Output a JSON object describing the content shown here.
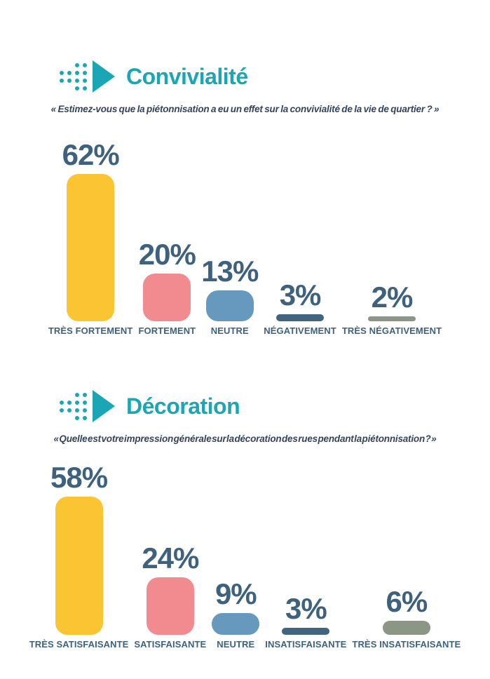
{
  "theme": {
    "accent": "#1AA6B4",
    "value_text_color": "#3E617E",
    "question_text_color": "#33455C",
    "background": "#FFFFFF"
  },
  "sections": [
    {
      "title": "Convivialité",
      "icon": "dots-play-icon",
      "question": "« Estimez-vous que la piétonnisation a eu un effet sur la convivialité de la vie de quartier ? »"
    },
    {
      "title": "Décoration",
      "icon": "dots-play-icon",
      "question": "« Quelle est votre impression générale sur la décoration des rues pendant la piétonnisation ? »"
    }
  ],
  "chart_data": [
    {
      "type": "bar",
      "title": "Convivialité",
      "categories": [
        "TRÈS FORTEMENT",
        "FORTEMENT",
        "NEUTRE",
        "NÉGATIVEMENT",
        "TRÈS NÉGATIVEMENT"
      ],
      "values": [
        62,
        20,
        13,
        3,
        2
      ],
      "value_labels": [
        "62%",
        "20%",
        "13%",
        "3%",
        "2%"
      ],
      "bar_colors": [
        "#FBC433",
        "#F28B90",
        "#6699BD",
        "#41647F",
        "#8B9685"
      ],
      "unit": "%",
      "ylim": [
        0,
        65
      ],
      "grid": false,
      "axes_visible": false,
      "legend": false
    },
    {
      "type": "bar",
      "title": "Décoration",
      "categories": [
        "TRÈS SATISFAISANTE",
        "SATISFAISANTE",
        "NEUTRE",
        "INSATISFAISANTE",
        "TRÈS INSATISFAISANTE"
      ],
      "values": [
        58,
        24,
        9,
        3,
        6
      ],
      "value_labels": [
        "58%",
        "24%",
        "9%",
        "3%",
        "6%"
      ],
      "bar_colors": [
        "#FBC433",
        "#F28B90",
        "#6699BD",
        "#41647F",
        "#8B9685"
      ],
      "unit": "%",
      "ylim": [
        0,
        65
      ],
      "grid": false,
      "axes_visible": false,
      "legend": false
    }
  ]
}
